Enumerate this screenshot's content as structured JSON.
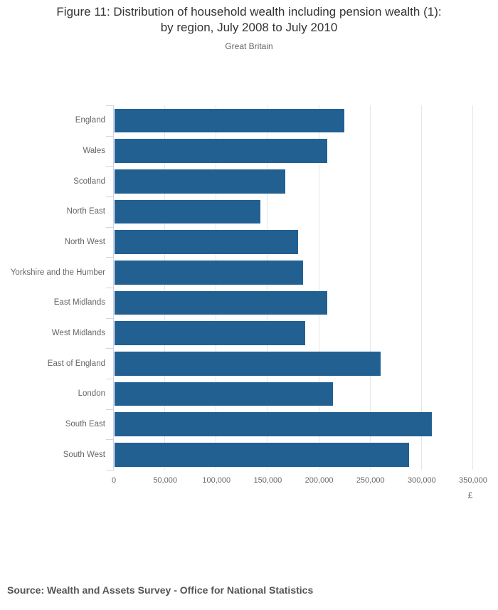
{
  "header": {
    "title_line1": "Figure 11: Distribution of household wealth including pension wealth (1):",
    "title_line2": "by region, July 2008 to July 2010",
    "subtitle": "Great Britain"
  },
  "footer": {
    "source": "Source: Wealth and Assets Survey - Office for National Statistics"
  },
  "colors": {
    "bar": "#236092",
    "gridline": "#e6e6e6",
    "axis": "#ccd6eb",
    "title_text": "#333333",
    "muted_text": "#666666",
    "source_text": "#545454"
  },
  "chart_data": {
    "type": "bar",
    "orientation": "horizontal",
    "title": "Figure 11: Distribution of household wealth including pension wealth (1): by region, July 2008 to July 2010",
    "subtitle": "Great Britain",
    "categories": [
      "England",
      "Wales",
      "Scotland",
      "North East",
      "North West",
      "Yorkshire and the Humber",
      "East Midlands",
      "West Midlands",
      "East of England",
      "London",
      "South East",
      "South West"
    ],
    "values": [
      224000,
      207000,
      166000,
      142000,
      179000,
      184000,
      207000,
      186000,
      259000,
      213000,
      309000,
      287000
    ],
    "xlabel": "£",
    "xlim": [
      0,
      350000
    ],
    "xticks": [
      0,
      50000,
      100000,
      150000,
      200000,
      250000,
      300000,
      350000
    ],
    "xtick_labels": [
      "0",
      "50,000",
      "100,000",
      "150,000",
      "200,000",
      "250,000",
      "300,000",
      "350,000"
    ],
    "grid": true,
    "legend": false,
    "bar_color": "#236092",
    "source": "Source: Wealth and Assets Survey - Office for National Statistics"
  }
}
